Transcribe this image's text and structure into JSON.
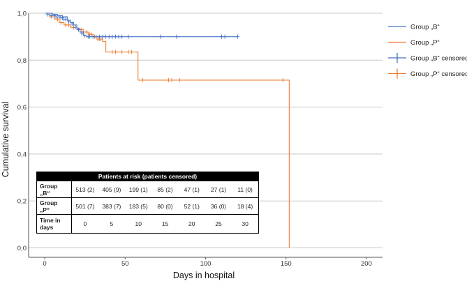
{
  "chart_data": {
    "type": "line",
    "subtype": "kaplan-meier step",
    "xlabel": "Days in hospital",
    "ylabel": "Cumulative survival",
    "xlim": [
      -10,
      210
    ],
    "ylim": [
      -0.04,
      1.0
    ],
    "x_ticks": [
      "0",
      "50",
      "100",
      "150",
      "200"
    ],
    "x_tick_values": [
      0,
      50,
      100,
      150,
      200
    ],
    "y_ticks": [
      "0,0",
      "0,2",
      "0,4",
      "0,6",
      "0,8",
      "1,0"
    ],
    "y_tick_values": [
      0,
      0.2,
      0.4,
      0.6,
      0.8,
      1.0
    ],
    "grid": "horizontal",
    "legend_position": "right",
    "series": [
      {
        "name": "Group „B“",
        "color": "#4472C4",
        "steps": [
          [
            0,
            1.0
          ],
          [
            5,
            0.995
          ],
          [
            8,
            0.99
          ],
          [
            11,
            0.985
          ],
          [
            14,
            0.97
          ],
          [
            16,
            0.96
          ],
          [
            18,
            0.95
          ],
          [
            20,
            0.935
          ],
          [
            22,
            0.92
          ],
          [
            24,
            0.905
          ],
          [
            26,
            0.9
          ],
          [
            120,
            0.9
          ]
        ],
        "censored": [
          [
            2,
            0.995
          ],
          [
            4,
            0.99
          ],
          [
            6,
            0.99
          ],
          [
            7,
            0.985
          ],
          [
            9,
            0.985
          ],
          [
            10,
            0.98
          ],
          [
            11,
            0.98
          ],
          [
            12,
            0.975
          ],
          [
            13,
            0.975
          ],
          [
            15,
            0.965
          ],
          [
            17,
            0.955
          ],
          [
            19,
            0.94
          ],
          [
            21,
            0.93
          ],
          [
            23,
            0.915
          ],
          [
            25,
            0.905
          ],
          [
            27,
            0.9
          ],
          [
            28,
            0.9
          ],
          [
            30,
            0.9
          ],
          [
            32,
            0.9
          ],
          [
            34,
            0.9
          ],
          [
            36,
            0.9
          ],
          [
            38,
            0.9
          ],
          [
            40,
            0.9
          ],
          [
            42,
            0.9
          ],
          [
            44,
            0.9
          ],
          [
            46,
            0.9
          ],
          [
            48,
            0.9
          ],
          [
            52,
            0.9
          ],
          [
            72,
            0.9
          ],
          [
            82,
            0.9
          ],
          [
            110,
            0.9
          ],
          [
            112,
            0.9
          ],
          [
            120,
            0.9
          ]
        ]
      },
      {
        "name": "Group „P“",
        "color": "#ED7D31",
        "steps": [
          [
            0,
            1.0
          ],
          [
            3,
            0.985
          ],
          [
            6,
            0.975
          ],
          [
            9,
            0.96
          ],
          [
            12,
            0.95
          ],
          [
            16,
            0.94
          ],
          [
            20,
            0.93
          ],
          [
            24,
            0.92
          ],
          [
            27,
            0.91
          ],
          [
            30,
            0.9
          ],
          [
            33,
            0.89
          ],
          [
            36,
            0.88
          ],
          [
            38,
            0.835
          ],
          [
            58,
            0.835
          ],
          [
            58,
            0.715
          ],
          [
            152,
            0.715
          ],
          [
            152,
            0.0
          ]
        ],
        "censored": [
          [
            4,
            0.985
          ],
          [
            8,
            0.975
          ],
          [
            10,
            0.96
          ],
          [
            13,
            0.95
          ],
          [
            15,
            0.95
          ],
          [
            18,
            0.94
          ],
          [
            21,
            0.93
          ],
          [
            23,
            0.93
          ],
          [
            26,
            0.92
          ],
          [
            28,
            0.91
          ],
          [
            29,
            0.91
          ],
          [
            31,
            0.9
          ],
          [
            33,
            0.89
          ],
          [
            34,
            0.89
          ],
          [
            35,
            0.89
          ],
          [
            42,
            0.835
          ],
          [
            44,
            0.835
          ],
          [
            48,
            0.835
          ],
          [
            52,
            0.835
          ],
          [
            54,
            0.835
          ],
          [
            61,
            0.715
          ],
          [
            77,
            0.715
          ],
          [
            79,
            0.715
          ],
          [
            84,
            0.715
          ],
          [
            148,
            0.715
          ]
        ]
      }
    ],
    "legend": [
      {
        "label": "Group „B“",
        "kind": "line",
        "color": "#4472C4"
      },
      {
        "label": "Group „P“",
        "kind": "line",
        "color": "#ED7D31"
      },
      {
        "label": "Group „B“ censored",
        "kind": "cross",
        "color": "#4472C4"
      },
      {
        "label": "Group „P“ censored",
        "kind": "cross",
        "color": "#ED7D31"
      }
    ]
  },
  "risk_table": {
    "title": "Patients at risk (patients censored)",
    "rows": [
      {
        "label_line1": "Group",
        "label_line2": "„B“",
        "cells": [
          "513 (2)",
          "405 (9)",
          "199 (1)",
          "85 (2)",
          "47 (1)",
          "27 (1)",
          "11 (0)"
        ]
      },
      {
        "label_line1": "Group",
        "label_line2": "„P“",
        "cells": [
          "501 (7)",
          "383 (7)",
          "183 (5)",
          "80 (0)",
          "52 (1)",
          "36 (0)",
          "18 (4)"
        ]
      },
      {
        "label_line1": "Time in",
        "label_line2": "days",
        "cells": [
          "0",
          "5",
          "10",
          "15",
          "20",
          "25",
          "30"
        ]
      }
    ]
  }
}
